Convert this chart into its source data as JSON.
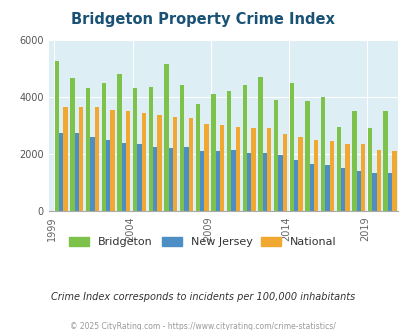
{
  "title": "Bridgeton Property Crime Index",
  "title_color": "#1a5276",
  "subtitle": "Crime Index corresponds to incidents per 100,000 inhabitants",
  "footer": "© 2025 CityRating.com - https://www.cityrating.com/crime-statistics/",
  "years": [
    1999,
    2000,
    2001,
    2002,
    2003,
    2004,
    2005,
    2006,
    2007,
    2008,
    2009,
    2010,
    2011,
    2012,
    2013,
    2014,
    2015,
    2016,
    2017,
    2018,
    2019,
    2020
  ],
  "bridgeton": [
    5250,
    4650,
    4300,
    4500,
    4800,
    4300,
    4350,
    5150,
    4400,
    3750,
    4100,
    4200,
    4400,
    4700,
    3900,
    4500,
    3850,
    4000,
    2950,
    3500,
    2900,
    3500
  ],
  "new_jersey": [
    2750,
    2750,
    2600,
    2500,
    2400,
    2350,
    2250,
    2200,
    2250,
    2100,
    2100,
    2150,
    2050,
    2050,
    1950,
    1800,
    1650,
    1600,
    1500,
    1400,
    1350,
    1350
  ],
  "national": [
    3650,
    3650,
    3650,
    3550,
    3500,
    3450,
    3350,
    3300,
    3250,
    3050,
    3000,
    2950,
    2900,
    2900,
    2700,
    2600,
    2500,
    2450,
    2350,
    2350,
    2150,
    2100
  ],
  "bridgeton_color": "#7dc34b",
  "nj_color": "#4d8fc4",
  "national_color": "#f0a830",
  "bg_color": "#ddeef5",
  "ylim": [
    0,
    6000
  ],
  "yticks": [
    0,
    2000,
    4000,
    6000
  ],
  "bar_width": 0.28,
  "tick_positions": [
    0,
    5,
    10,
    15,
    20
  ],
  "tick_labels": [
    "1999",
    "2004",
    "2009",
    "2014",
    "2019"
  ]
}
